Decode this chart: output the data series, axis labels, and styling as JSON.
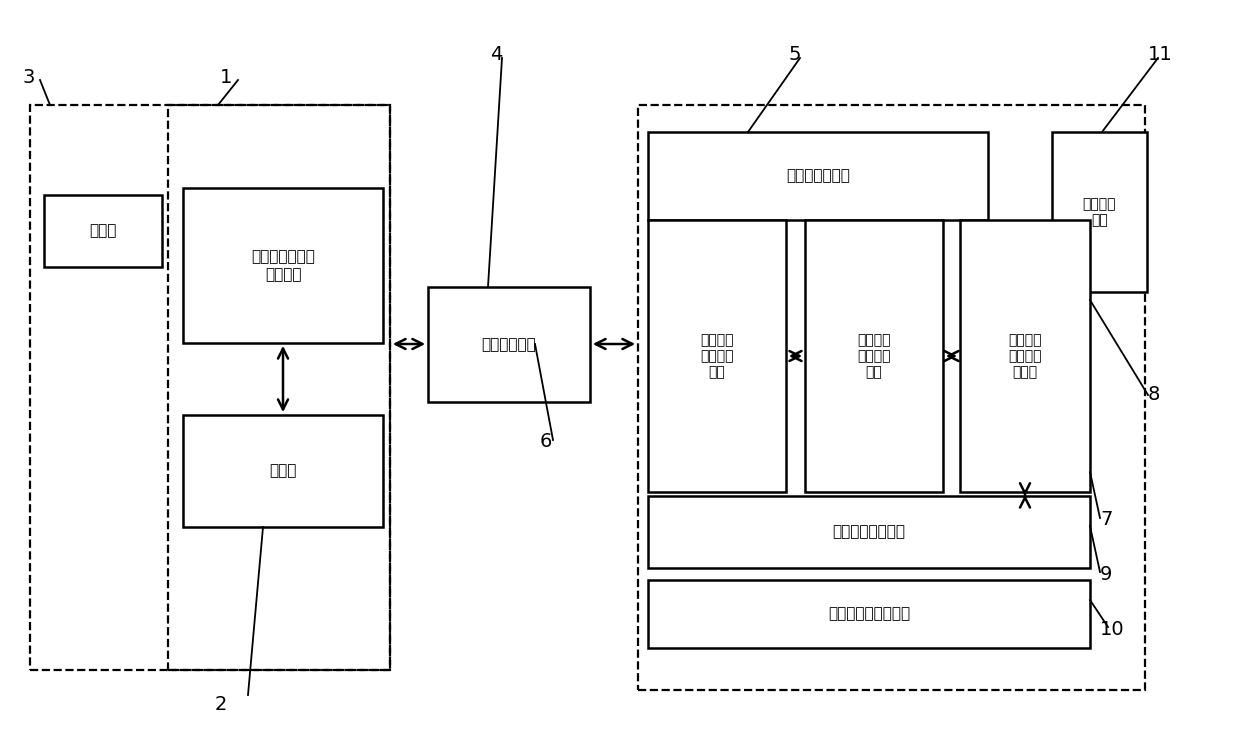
{
  "bg_color": "#ffffff",
  "labels": {
    "jijixiang": "机柜箱",
    "taiwan_data": "台下数据采集与\n处理系统",
    "server": "服务器",
    "wireless": "无线传输系统",
    "power_gas": "供电与供气系统",
    "vacuum": "真空控制\n系统",
    "inertial_ctrl": "惯性执行\n机构控制\n系统",
    "inertial_prod": "惯性执行\n机构待测\n产品",
    "table_data": "台上数据\n采集与处\n理系统",
    "residual": "残余力矩测试系统",
    "vibration": "振动隔离与支撑系统"
  }
}
